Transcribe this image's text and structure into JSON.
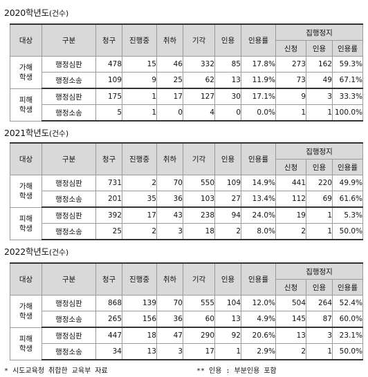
{
  "sections": [
    {
      "title": "2020학년도",
      "unit": "(건수)",
      "rows": [
        {
          "group": [
            "가해",
            "학생"
          ],
          "type": "행정심판",
          "v": [
            "478",
            "15",
            "46",
            "332",
            "85",
            "17.8%",
            "273",
            "162",
            "59.3%"
          ]
        },
        {
          "group": null,
          "type": "행정소송",
          "v": [
            "109",
            "9",
            "25",
            "62",
            "13",
            "11.9%",
            "73",
            "49",
            "67.1%"
          ]
        },
        {
          "group": [
            "피해",
            "학생"
          ],
          "type": "행정심판",
          "v": [
            "175",
            "1",
            "17",
            "127",
            "30",
            "17.1%",
            "9",
            "3",
            "33.3%"
          ]
        },
        {
          "group": null,
          "type": "행정소송",
          "v": [
            "5",
            "1",
            "0",
            "4",
            "0",
            "0.0%",
            "1",
            "1",
            "100.0%"
          ]
        }
      ]
    },
    {
      "title": "2021학년도",
      "unit": "(건수)",
      "rows": [
        {
          "group": [
            "가해",
            "학생"
          ],
          "type": "행정심판",
          "v": [
            "731",
            "2",
            "70",
            "550",
            "109",
            "14.9%",
            "441",
            "220",
            "49.9%"
          ]
        },
        {
          "group": null,
          "type": "행정소송",
          "v": [
            "201",
            "35",
            "36",
            "103",
            "27",
            "13.4%",
            "112",
            "69",
            "61.6%"
          ]
        },
        {
          "group": [
            "피해",
            "학생"
          ],
          "type": "행정심판",
          "v": [
            "392",
            "17",
            "43",
            "238",
            "94",
            "24.0%",
            "19",
            "1",
            "5.3%"
          ]
        },
        {
          "group": null,
          "type": "행정소송",
          "v": [
            "25",
            "2",
            "3",
            "18",
            "2",
            "8.0%",
            "2",
            "1",
            "50.0%"
          ]
        }
      ]
    },
    {
      "title": "2022학년도",
      "unit": "(건수)",
      "rows": [
        {
          "group": [
            "가해",
            "학생"
          ],
          "type": "행정심판",
          "v": [
            "868",
            "139",
            "70",
            "555",
            "104",
            "12.0%",
            "504",
            "264",
            "52.4%"
          ]
        },
        {
          "group": null,
          "type": "행정소송",
          "v": [
            "265",
            "156",
            "36",
            "60",
            "13",
            "4.9%",
            "145",
            "87",
            "60.0%"
          ]
        },
        {
          "group": [
            "피해",
            "학생"
          ],
          "type": "행정심판",
          "v": [
            "447",
            "18",
            "47",
            "290",
            "92",
            "20.6%",
            "13",
            "3",
            "23.1%"
          ]
        },
        {
          "group": null,
          "type": "행정소송",
          "v": [
            "34",
            "13",
            "3",
            "17",
            "1",
            "2.9%",
            "2",
            "1",
            "50.0%"
          ]
        }
      ]
    }
  ],
  "headers": {
    "target": "대상",
    "category": "구분",
    "request": "청구",
    "in_progress": "진행중",
    "withdrawn": "취하",
    "dismissed": "기각",
    "accepted": "인용",
    "accept_rate": "인용률",
    "suspension": "집행정지",
    "sub_apply": "신청",
    "sub_accepted": "인용",
    "sub_rate": "인용률"
  },
  "footnotes": {
    "left": "* 시도교육청 취합한 교육부 자료",
    "right": "** 인용 : 부분인용 포함"
  }
}
